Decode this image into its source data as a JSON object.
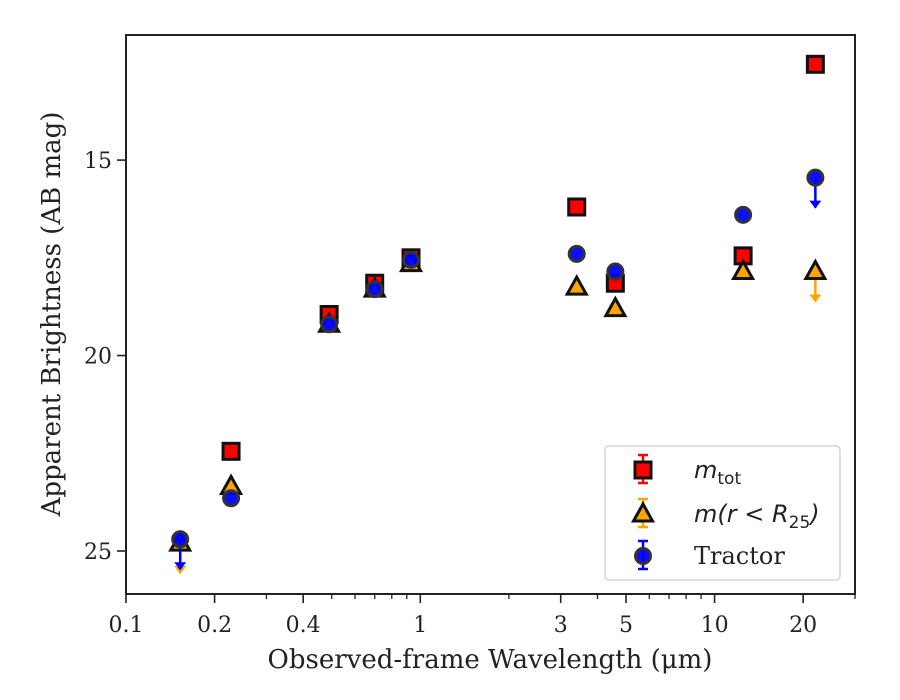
{
  "chart_data": {
    "type": "scatter",
    "xlabel": "Observed-frame Wavelength (μm)",
    "ylabel": "Apparent Brightness (AB mag)",
    "x_scale": "log",
    "xlim": [
      0.1,
      30
    ],
    "ylim": [
      26.1,
      11.8
    ],
    "y_inverted": true,
    "x_ticks": [
      {
        "value": 0.1,
        "label": "0.1"
      },
      {
        "value": 0.2,
        "label": "0.2"
      },
      {
        "value": 0.4,
        "label": "0.4"
      },
      {
        "value": 1,
        "label": "1"
      },
      {
        "value": 3,
        "label": "3"
      },
      {
        "value": 5,
        "label": "5"
      },
      {
        "value": 10,
        "label": "10"
      },
      {
        "value": 20,
        "label": "20"
      }
    ],
    "y_ticks": [
      {
        "value": 15,
        "label": "15"
      },
      {
        "value": 20,
        "label": "20"
      },
      {
        "value": 25,
        "label": "25"
      }
    ],
    "grid": false,
    "legend_position": "bottom-right",
    "series": [
      {
        "name": "m_tot",
        "legend_label": "m",
        "legend_subscript": "tot",
        "marker": "square",
        "color": "#ff0000",
        "edge_color": "#111111",
        "points": [
          {
            "x": 0.2275,
            "y": 22.45,
            "upper_limit": false
          },
          {
            "x": 0.49,
            "y": 18.95,
            "upper_limit": false
          },
          {
            "x": 0.7,
            "y": 18.15,
            "upper_limit": false
          },
          {
            "x": 0.93,
            "y": 17.5,
            "upper_limit": false
          },
          {
            "x": 3.4,
            "y": 16.2,
            "upper_limit": false
          },
          {
            "x": 4.6,
            "y": 18.15,
            "upper_limit": false
          },
          {
            "x": 12.5,
            "y": 17.45,
            "upper_limit": false
          },
          {
            "x": 22.0,
            "y": 12.55,
            "upper_limit": false
          }
        ]
      },
      {
        "name": "m(r<R25)",
        "legend_label": "m(r < R",
        "legend_subscript": "25",
        "legend_suffix": ")",
        "marker": "triangle",
        "color": "#ffa500",
        "edge_color": "#111111",
        "points": [
          {
            "x": 0.1528,
            "y": 24.8,
            "upper_limit": true
          },
          {
            "x": 0.2275,
            "y": 23.35,
            "upper_limit": false
          },
          {
            "x": 0.49,
            "y": 19.2,
            "upper_limit": false
          },
          {
            "x": 0.7,
            "y": 18.3,
            "upper_limit": false
          },
          {
            "x": 0.93,
            "y": 17.65,
            "upper_limit": false
          },
          {
            "x": 3.4,
            "y": 18.25,
            "upper_limit": false
          },
          {
            "x": 4.6,
            "y": 18.8,
            "upper_limit": false
          },
          {
            "x": 12.5,
            "y": 17.85,
            "upper_limit": false
          },
          {
            "x": 22.0,
            "y": 17.85,
            "upper_limit": true
          }
        ]
      },
      {
        "name": "Tractor",
        "legend_label": "Tractor",
        "marker": "circle",
        "color": "#0000ff",
        "edge_color": "#333333",
        "points": [
          {
            "x": 0.1528,
            "y": 24.7,
            "upper_limit": true
          },
          {
            "x": 0.2275,
            "y": 23.65,
            "upper_limit": false
          },
          {
            "x": 0.49,
            "y": 19.2,
            "upper_limit": false
          },
          {
            "x": 0.7,
            "y": 18.3,
            "upper_limit": false
          },
          {
            "x": 0.93,
            "y": 17.55,
            "upper_limit": false
          },
          {
            "x": 3.4,
            "y": 17.4,
            "upper_limit": false
          },
          {
            "x": 4.6,
            "y": 17.85,
            "upper_limit": false
          },
          {
            "x": 12.5,
            "y": 16.4,
            "upper_limit": false
          },
          {
            "x": 22.0,
            "y": 15.45,
            "upper_limit": true
          }
        ]
      }
    ]
  }
}
